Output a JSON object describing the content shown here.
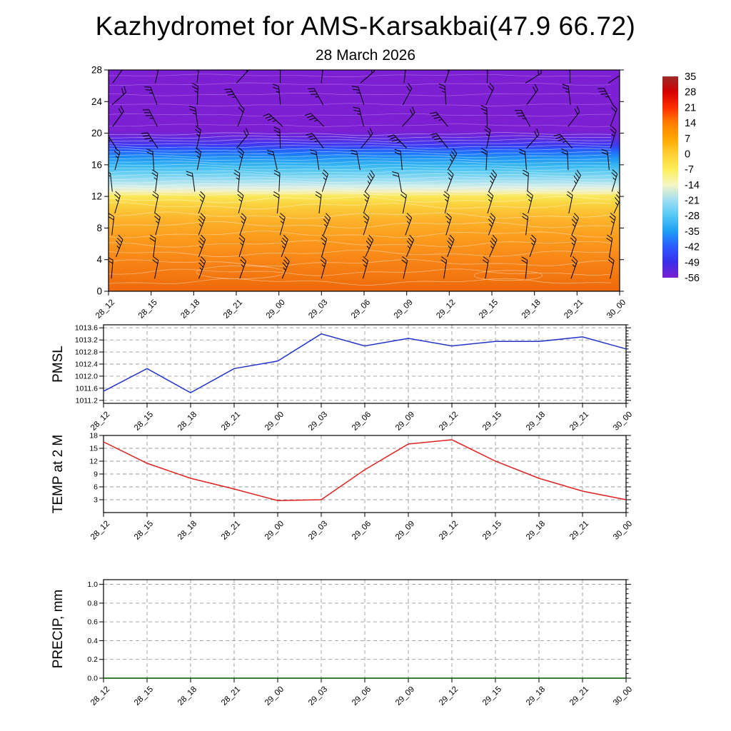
{
  "title": "Kazhydromet for AMS-Karsakbai(47.9 66.72)",
  "subtitle": "28 March 2026",
  "time_labels": [
    "28_12",
    "28_15",
    "28_18",
    "28_21",
    "29_00",
    "29_03",
    "29_06",
    "29_09",
    "29_12",
    "29_15",
    "29_18",
    "29_21",
    "30_00"
  ],
  "colors": {
    "axis": "#000000",
    "grid": "#999999",
    "background": "#ffffff"
  },
  "chart_data": [
    {
      "type": "heatmap",
      "name": "cross_section",
      "title": "Temperature vertical cross-section with wind barbs",
      "categories": [
        "28_12",
        "28_15",
        "28_18",
        "28_21",
        "29_00",
        "29_03",
        "29_06",
        "29_09",
        "29_12",
        "29_15",
        "29_18",
        "29_21",
        "30_00"
      ],
      "ylim": [
        0,
        28
      ],
      "yticks": [
        28,
        24,
        20,
        16,
        12,
        8,
        4,
        0
      ],
      "legend_position": "right",
      "colorbar_tick_labels": [
        "35",
        "28",
        "21",
        "14",
        "7",
        "0",
        "-7",
        "-14",
        "-21",
        "-28",
        "-35",
        "-42",
        "-49",
        "-56"
      ],
      "colorbar_colors": [
        "#9b2a2a",
        "#d40000",
        "#ff2f00",
        "#ff7d00",
        "#ffa600",
        "#ffcf33",
        "#fcee58",
        "#f6f6c2",
        "#9fdef2",
        "#53c8f5",
        "#1e9ef5",
        "#2b59ff",
        "#3b2fe8",
        "#7a1fd0"
      ],
      "fill_gradient": [
        {
          "pos": 0,
          "color": "#7d1fd2"
        },
        {
          "pos": 27.5,
          "color": "#7d1fd2"
        },
        {
          "pos": 31,
          "color": "#5f2ae0"
        },
        {
          "pos": 34.3,
          "color": "#3a3cf2"
        },
        {
          "pos": 36.4,
          "color": "#2361ff"
        },
        {
          "pos": 39.3,
          "color": "#1e8ef8"
        },
        {
          "pos": 42.9,
          "color": "#33b5f2"
        },
        {
          "pos": 46.4,
          "color": "#63cdf2"
        },
        {
          "pos": 50,
          "color": "#9fdff0"
        },
        {
          "pos": 52.9,
          "color": "#d7efe8"
        },
        {
          "pos": 55,
          "color": "#f4f0b8"
        },
        {
          "pos": 57.1,
          "color": "#fae858"
        },
        {
          "pos": 60.7,
          "color": "#fbd23e"
        },
        {
          "pos": 67.9,
          "color": "#fdb229"
        },
        {
          "pos": 75,
          "color": "#fc9e1e"
        },
        {
          "pos": 85.7,
          "color": "#f88617"
        },
        {
          "pos": 94.6,
          "color": "#f2740e"
        },
        {
          "pos": 100,
          "color": "#ee680a"
        }
      ],
      "overlay": "wind-barbs",
      "contour_color": "#ffffff",
      "barb_color": "#000000"
    },
    {
      "type": "line",
      "name": "pmsl",
      "ylabel": "PMSL",
      "categories": [
        "28_12",
        "28_15",
        "28_18",
        "28_21",
        "29_00",
        "29_03",
        "29_06",
        "29_09",
        "29_12",
        "29_15",
        "29_18",
        "29_21",
        "30_00"
      ],
      "values": [
        1011.5,
        1012.25,
        1011.45,
        1012.25,
        1012.5,
        1013.4,
        1013.0,
        1013.25,
        1013.0,
        1013.15,
        1013.15,
        1013.3,
        1012.9
      ],
      "yticks": [
        1013.6,
        1013.2,
        1012.8,
        1012.4,
        1012.0,
        1011.6,
        1011.2
      ],
      "ytick_labels": [
        "1013.6",
        "1013.2",
        "1012.8",
        "1012.4",
        "1012.0",
        "1011.6",
        "1011.2"
      ],
      "ylim": [
        1011.1,
        1013.7
      ],
      "minor_step": 0.1,
      "grid": true,
      "line_color": "#2233cc"
    },
    {
      "type": "line",
      "name": "temp_2m",
      "ylabel": "TEMP at 2 M",
      "categories": [
        "28_12",
        "28_15",
        "28_18",
        "28_21",
        "29_00",
        "29_03",
        "29_06",
        "29_09",
        "29_12",
        "29_15",
        "29_18",
        "29_21",
        "30_00"
      ],
      "values": [
        16.5,
        11.5,
        8,
        5.5,
        2.8,
        3,
        10,
        16,
        17,
        12,
        8,
        5,
        3
      ],
      "yticks": [
        18,
        15,
        12,
        9,
        6,
        3
      ],
      "ytick_labels": [
        "18",
        "15",
        "12",
        "9",
        "6",
        "3"
      ],
      "ylim": [
        0,
        18
      ],
      "minor_step": 1,
      "grid": true,
      "line_color": "#e02020"
    },
    {
      "type": "line",
      "name": "precip",
      "ylabel": "PRECIP, mm",
      "categories": [
        "28_12",
        "28_15",
        "28_18",
        "28_21",
        "29_00",
        "29_03",
        "29_06",
        "29_09",
        "29_12",
        "29_15",
        "29_18",
        "29_21",
        "30_00"
      ],
      "values": [
        0,
        0,
        0,
        0,
        0,
        0,
        0,
        0,
        0,
        0,
        0,
        0,
        0
      ],
      "yticks": [
        1.0,
        0.8,
        0.6,
        0.4,
        0.2,
        0.0
      ],
      "ytick_labels": [
        "1.0",
        "0.8",
        "0.6",
        "0.4",
        "0.2",
        "0.0"
      ],
      "ylim": [
        0,
        1.05
      ],
      "minor_step": 0.05,
      "grid": true,
      "line_color": "#076607"
    }
  ]
}
